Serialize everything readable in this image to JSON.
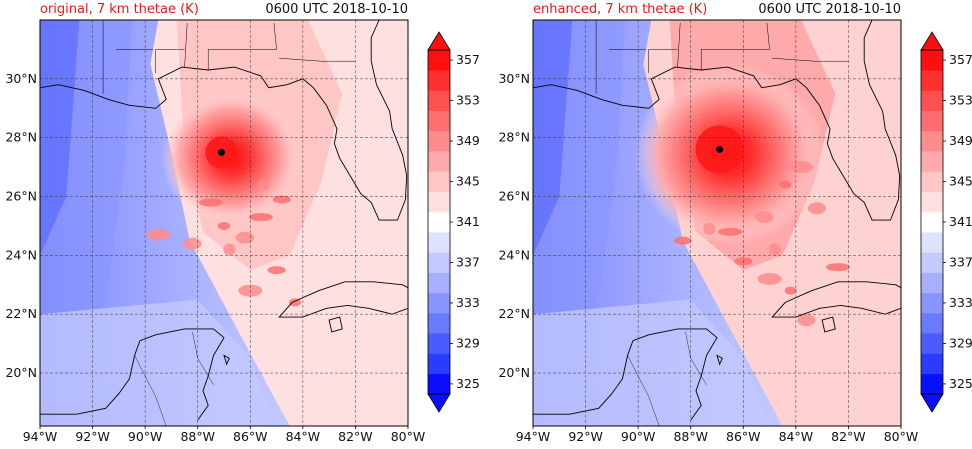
{
  "colors": {
    "title_left": "#e41a1c",
    "title_right": "#111111",
    "scale": [
      "#0a10ff",
      "#2a3cff",
      "#4a5cff",
      "#6a7bff",
      "#8895ff",
      "#a6b0ff",
      "#c4caff",
      "#dfe2ff",
      "#ffffff",
      "#ffe0e0",
      "#ffc6c6",
      "#ffaaaa",
      "#ff8c8c",
      "#ff6e6e",
      "#ff5050",
      "#ff3030",
      "#ff0f0f"
    ]
  },
  "panels": [
    {
      "id": "original",
      "title_left": "original, 7 km thetae (K)",
      "title_right": "0600 UTC 2018-10-10"
    },
    {
      "id": "enhanced",
      "title_left": "enhanced, 7 km thetae (K)",
      "title_right": "0600 UTC 2018-10-10"
    }
  ],
  "chart_data": [
    {
      "type": "heatmap",
      "title": "original, 7 km thetae (K)",
      "subtitle": "0600 UTC 2018-10-10",
      "xlim": [
        -94,
        -80
      ],
      "ylim": [
        18.2,
        32.0
      ],
      "x_ticks": [
        "94°W",
        "92°W",
        "90°W",
        "88°W",
        "86°W",
        "84°W",
        "82°W",
        "80°W"
      ],
      "y_ticks": [
        "20°N",
        "22°N",
        "24°N",
        "26°N",
        "28°N",
        "30°N"
      ],
      "grid": true,
      "colorbar": {
        "label_ticks": [
          "325",
          "329",
          "333",
          "337",
          "341",
          "345",
          "349",
          "353",
          "357"
        ],
        "min": 325,
        "max": 359,
        "step": 2,
        "extend": "both"
      },
      "storm_center": {
        "lon": -87.1,
        "lat": 27.5
      }
    },
    {
      "type": "heatmap",
      "title": "enhanced, 7 km thetae (K)",
      "subtitle": "0600 UTC 2018-10-10",
      "xlim": [
        -94,
        -80
      ],
      "ylim": [
        18.2,
        32.0
      ],
      "x_ticks": [
        "94°W",
        "92°W",
        "90°W",
        "88°W",
        "86°W",
        "84°W",
        "82°W",
        "80°W"
      ],
      "y_ticks": [
        "20°N",
        "22°N",
        "24°N",
        "26°N",
        "28°N",
        "30°N"
      ],
      "grid": true,
      "colorbar": {
        "label_ticks": [
          "325",
          "329",
          "333",
          "337",
          "341",
          "345",
          "349",
          "353",
          "357"
        ],
        "min": 325,
        "max": 359,
        "step": 2,
        "extend": "both"
      },
      "storm_center": {
        "lon": -86.9,
        "lat": 27.6
      }
    }
  ]
}
